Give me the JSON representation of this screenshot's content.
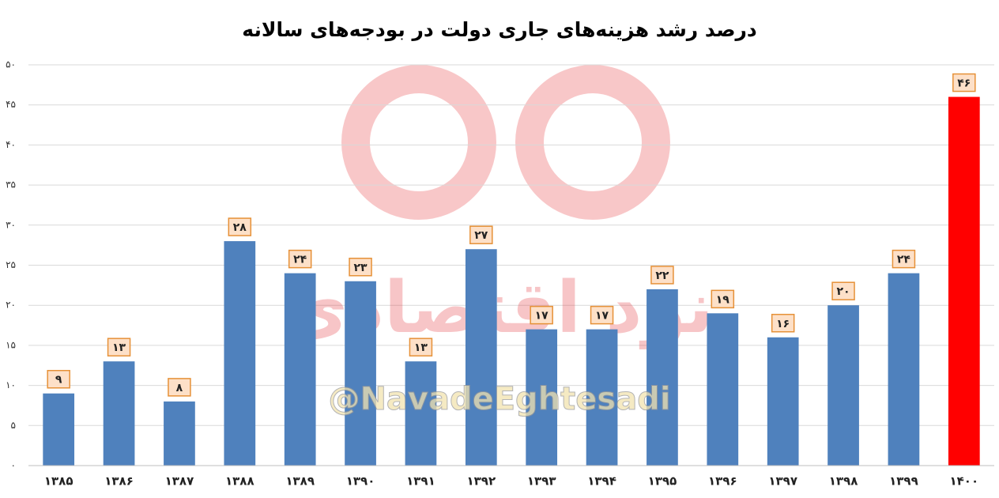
{
  "chart_data": {
    "type": "bar",
    "title": "درصد رشد هزینه‌های جاری دولت در بودجه‌های سالانه",
    "categories": [
      "۱۳۸۵",
      "۱۳۸۶",
      "۱۳۸۷",
      "۱۳۸۸",
      "۱۳۸۹",
      "۱۳۹۰",
      "۱۳۹۱",
      "۱۳۹۲",
      "۱۳۹۳",
      "۱۳۹۴",
      "۱۳۹۵",
      "۱۳۹۶",
      "۱۳۹۷",
      "۱۳۹۸",
      "۱۳۹۹",
      "۱۴۰۰"
    ],
    "values": [
      9,
      13,
      8,
      28,
      24,
      23,
      13,
      27,
      17,
      17,
      22,
      19,
      16,
      20,
      24,
      46
    ],
    "value_labels": [
      "۹",
      "۱۳",
      "۸",
      "۲۸",
      "۲۴",
      "۲۳",
      "۱۳",
      "۲۷",
      "۱۷",
      "۱۷",
      "۲۲",
      "۱۹",
      "۱۶",
      "۲۰",
      "۲۴",
      "۴۶"
    ],
    "colors": [
      "#4f81bd",
      "#4f81bd",
      "#4f81bd",
      "#4f81bd",
      "#4f81bd",
      "#4f81bd",
      "#4f81bd",
      "#4f81bd",
      "#4f81bd",
      "#4f81bd",
      "#4f81bd",
      "#4f81bd",
      "#4f81bd",
      "#4f81bd",
      "#4f81bd",
      "#ff0000"
    ],
    "ylim": [
      0,
      50
    ],
    "yticks": [
      {
        "value": 0,
        "label": "۰"
      },
      {
        "value": 5,
        "label": "۵"
      },
      {
        "value": 10,
        "label": "۱۰"
      },
      {
        "value": 15,
        "label": "۱۵"
      },
      {
        "value": 20,
        "label": "۲۰"
      },
      {
        "value": 25,
        "label": "۲۵"
      },
      {
        "value": 30,
        "label": "۳۰"
      },
      {
        "value": 35,
        "label": "۳۵"
      },
      {
        "value": 40,
        "label": "۴۰"
      },
      {
        "value": 45,
        "label": "۴۵"
      },
      {
        "value": 50,
        "label": "۵۰"
      }
    ],
    "grid": true,
    "watermark": "@NavadeEghtesadi",
    "watermark_logo_text": "نود اقتصادی"
  }
}
